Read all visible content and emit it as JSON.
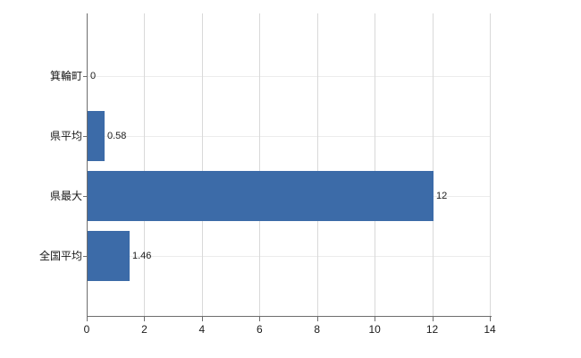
{
  "chart_data": {
    "type": "bar",
    "orientation": "horizontal",
    "title": "",
    "xlabel": "",
    "ylabel": "",
    "categories": [
      "箕輪町",
      "県平均",
      "県最大",
      "全国平均"
    ],
    "values": [
      0,
      0.58,
      12,
      1.46
    ],
    "value_labels": [
      "0",
      "0.58",
      "12",
      "1.46"
    ],
    "xlim": [
      0,
      14
    ],
    "xticks": [
      0,
      2,
      4,
      6,
      8,
      10,
      12,
      14
    ],
    "grid": true,
    "legend": false,
    "colors": {
      "bar": "#3c6ba8",
      "vertical_gridline": "#d9d9d9",
      "horizontal_gridline": "#ececec",
      "axis": "#6e6e6e",
      "text": "#1a1a1a"
    }
  }
}
